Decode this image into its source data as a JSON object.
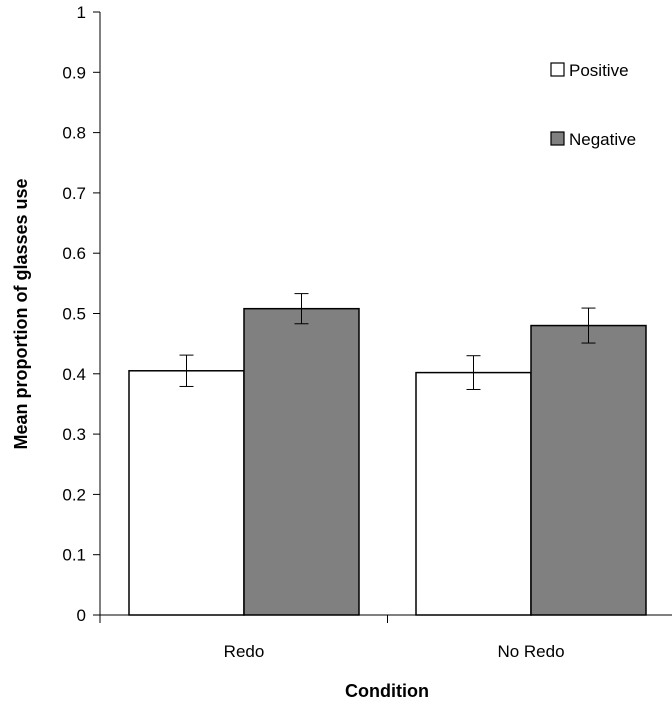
{
  "chart_data": {
    "type": "bar",
    "categories": [
      "Redo",
      "No Redo"
    ],
    "series": [
      {
        "name": "Positive",
        "values": [
          0.405,
          0.402
        ],
        "errors": [
          0.026,
          0.028
        ],
        "color": "#ffffff"
      },
      {
        "name": "Negative",
        "values": [
          0.508,
          0.48
        ],
        "errors": [
          0.025,
          0.029
        ],
        "color": "#808080"
      }
    ],
    "xlabel": "Condition",
    "ylabel": "Mean proportion of glasses use",
    "ylim": [
      0,
      1
    ],
    "yticks": [
      "0",
      "0.1",
      "0.2",
      "0.3",
      "0.4",
      "0.5",
      "0.6",
      "0.7",
      "0.8",
      "0.9",
      "1"
    ],
    "grid": false,
    "legend_position": "top-right",
    "border_color": "#000000"
  }
}
